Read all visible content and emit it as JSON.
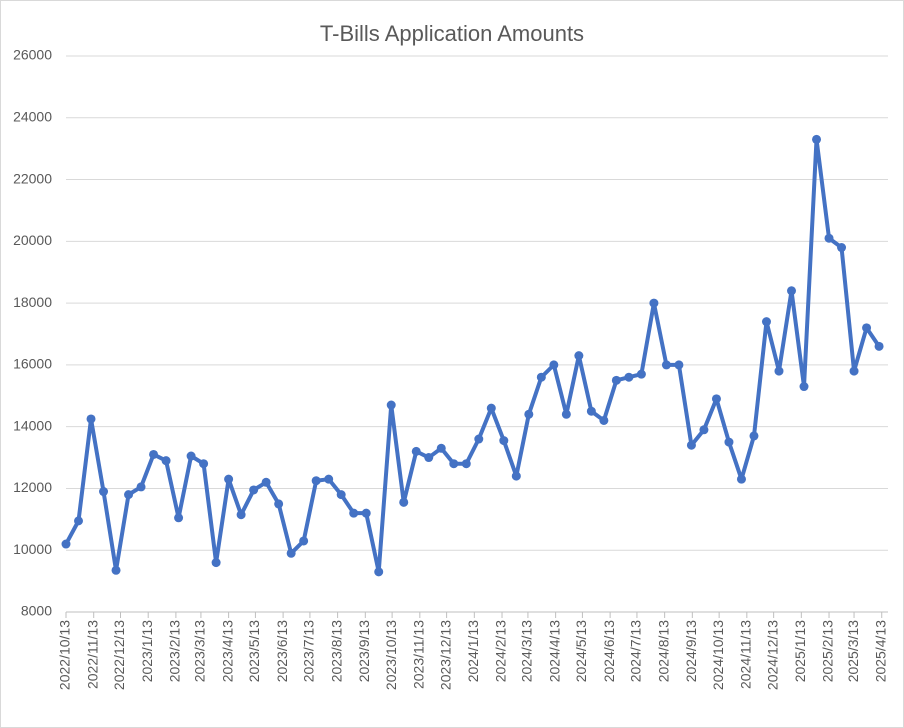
{
  "chart_data": {
    "type": "line",
    "title": "T-Bills Application Amounts",
    "x": [
      "2022/10/13",
      "2022/10/27",
      "2022/11/10",
      "2022/11/24",
      "2022/12/8",
      "2022/12/22",
      "2023/1/5",
      "2023/1/19",
      "2023/2/2",
      "2023/2/16",
      "2023/3/2",
      "2023/3/16",
      "2023/3/30",
      "2023/4/13",
      "2023/4/27",
      "2023/5/11",
      "2023/5/25",
      "2023/6/8",
      "2023/6/22",
      "2023/7/6",
      "2023/7/20",
      "2023/8/3",
      "2023/8/17",
      "2023/8/31",
      "2023/9/14",
      "2023/9/28",
      "2023/10/12",
      "2023/10/26",
      "2023/11/9",
      "2023/11/23",
      "2023/12/7",
      "2023/12/21",
      "2024/1/4",
      "2024/1/18",
      "2024/2/1",
      "2024/2/15",
      "2024/2/29",
      "2024/3/14",
      "2024/3/28",
      "2024/4/11",
      "2024/4/25",
      "2024/5/9",
      "2024/5/23",
      "2024/6/6",
      "2024/6/20",
      "2024/7/4",
      "2024/7/18",
      "2024/8/1",
      "2024/8/15",
      "2024/8/29",
      "2024/9/12",
      "2024/9/26",
      "2024/10/10",
      "2024/10/24",
      "2024/11/7",
      "2024/11/21",
      "2024/12/5",
      "2024/12/19",
      "2025/1/2",
      "2025/1/16",
      "2025/1/30",
      "2025/2/13",
      "2025/2/27",
      "2025/3/13",
      "2025/3/27",
      "2025/4/10"
    ],
    "series": [
      {
        "color": "#4472c4",
        "values": [
          10200,
          10950,
          14250,
          11900,
          9350,
          11800,
          12050,
          13100,
          12900,
          11050,
          13050,
          12800,
          9600,
          12300,
          11150,
          11950,
          12200,
          11500,
          9900,
          10300,
          12250,
          12300,
          11800,
          11200,
          11200,
          9300,
          14700,
          11550,
          13200,
          13000,
          13300,
          12800,
          12800,
          13600,
          14600,
          13550,
          12400,
          14400,
          15600,
          16000,
          14400,
          16300,
          14500,
          14200,
          15500,
          15600,
          15700,
          18000,
          16000,
          16000,
          13400,
          13900,
          14900,
          13500,
          12300,
          13700,
          17400,
          15800,
          18400,
          15300,
          23300,
          20100,
          19800,
          15800,
          17200,
          16600
        ]
      }
    ],
    "xlim": [
      "2022/10/13",
      "2025/4/20"
    ],
    "xticks": [
      "2022/10/13",
      "2022/11/13",
      "2022/12/13",
      "2023/1/13",
      "2023/2/13",
      "2023/3/13",
      "2023/4/13",
      "2023/5/13",
      "2023/6/13",
      "2023/7/13",
      "2023/8/13",
      "2023/9/13",
      "2023/10/13",
      "2023/11/13",
      "2023/12/13",
      "2024/1/13",
      "2024/2/13",
      "2024/3/13",
      "2024/4/13",
      "2024/5/13",
      "2024/6/13",
      "2024/7/13",
      "2024/8/13",
      "2024/9/13",
      "2024/10/13",
      "2024/11/13",
      "2024/12/13",
      "2025/1/13",
      "2025/2/13",
      "2025/3/13",
      "2025/4/13"
    ],
    "ylim": [
      8000,
      26000
    ],
    "yticks": [
      8000,
      10000,
      12000,
      14000,
      16000,
      18000,
      20000,
      22000,
      24000,
      26000
    ],
    "grid": true
  }
}
